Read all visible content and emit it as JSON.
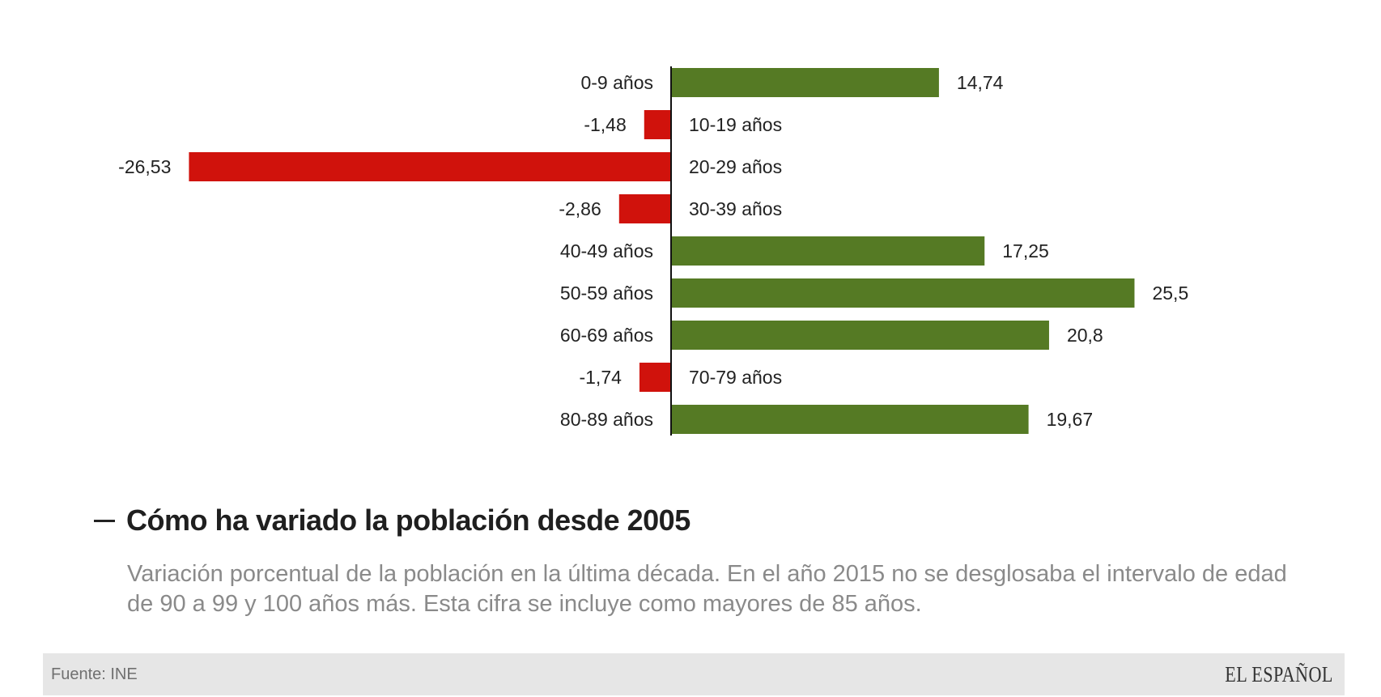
{
  "chart_data": {
    "type": "bar",
    "orientation": "horizontal",
    "categories": [
      "0-9 años",
      "10-19 años",
      "20-29 años",
      "30-39 años",
      "40-49 años",
      "50-59 años",
      "60-69 años",
      "70-79 años",
      "80-89 años"
    ],
    "values": [
      14.74,
      -1.48,
      -26.53,
      -2.86,
      17.25,
      25.5,
      20.8,
      -1.74,
      19.67
    ],
    "value_labels": [
      "14,74",
      "-1,48",
      "-26,53",
      "-2,86",
      "17,25",
      "25,5",
      "20,8",
      "-1,74",
      "19,67"
    ],
    "title": "Cómo ha variado la población desde 2005",
    "subtitle": "Variación porcentual de la población en la última década. En el año 2015 no se desglosaba el intervalo de edad de 90 a 99 y 100 años más. Esta cifra se incluye como mayores de 85 años.",
    "xlim": [
      -26.53,
      25.5
    ],
    "grid": false,
    "legend": "none",
    "colors": {
      "positive": "#557a24",
      "negative": "#d0120c"
    }
  },
  "footer": {
    "source": "Fuente: INE",
    "logo_text": "EL ESPAÑOL"
  }
}
